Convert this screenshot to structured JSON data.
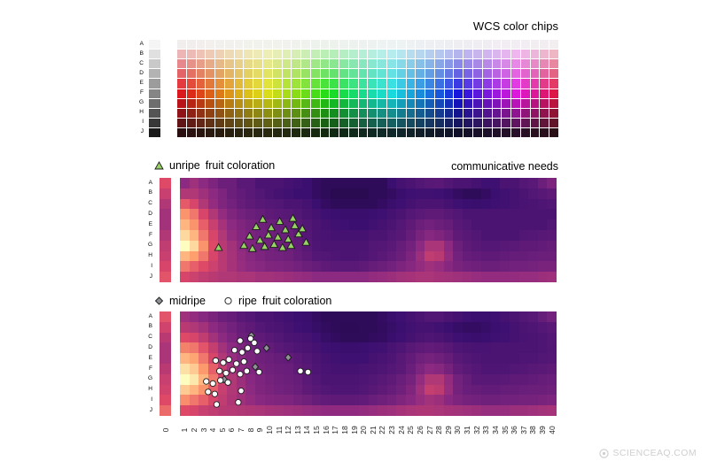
{
  "watermark": "SCIENCEAQ.COM",
  "row_labels": [
    "A",
    "B",
    "C",
    "D",
    "E",
    "F",
    "G",
    "H",
    "I",
    "J"
  ],
  "x_labels": [
    "0",
    "1",
    "2",
    "3",
    "4",
    "5",
    "6",
    "7",
    "8",
    "9",
    "10",
    "11",
    "12",
    "13",
    "14",
    "15",
    "16",
    "17",
    "18",
    "19",
    "20",
    "21",
    "22",
    "23",
    "24",
    "25",
    "26",
    "27",
    "28",
    "29",
    "30",
    "31",
    "32",
    "33",
    "34",
    "35",
    "36",
    "37",
    "38",
    "39",
    "40"
  ],
  "colormap_stops": [
    [
      0,
      "#000004"
    ],
    [
      0.25,
      "#3b0f70"
    ],
    [
      0.5,
      "#8c2981"
    ],
    [
      0.72,
      "#de4968"
    ],
    [
      0.87,
      "#fe9f6d"
    ],
    [
      1,
      "#fcfdbf"
    ]
  ],
  "marker_style": {
    "triangle_fill": "#97d264",
    "diamond_fill": "#8f9196",
    "circle_fill": "#ffffff",
    "stroke": "#1a1a1a"
  },
  "chart_data": [
    {
      "type": "heatmap",
      "id": "chips",
      "title": "WCS color chips",
      "rows": [
        "A",
        "B",
        "C",
        "D",
        "E",
        "F",
        "G",
        "H",
        "I",
        "J"
      ],
      "cols": 40,
      "col_hues": [
        358,
        6,
        14,
        22,
        30,
        38,
        45,
        51,
        56,
        61,
        68,
        76,
        85,
        95,
        105,
        115,
        125,
        135,
        145,
        155,
        165,
        173,
        181,
        189,
        197,
        205,
        213,
        221,
        230,
        240,
        250,
        260,
        270,
        280,
        290,
        300,
        310,
        320,
        332,
        345
      ],
      "row_saturation": [
        18,
        62,
        66,
        70,
        75,
        80,
        80,
        75,
        65,
        45
      ],
      "row_lightness": [
        94,
        82,
        72,
        64,
        56,
        48,
        40,
        32,
        23,
        11
      ],
      "grayscale_column_lightness": [
        96,
        88,
        79,
        70,
        61,
        52,
        43,
        33,
        22,
        10
      ]
    },
    {
      "type": "heatmap",
      "id": "needs",
      "title": "communicative needs",
      "legend": {
        "items": [
          {
            "marker": "triangle",
            "label": "unripe"
          }
        ],
        "suffix": "fruit coloration"
      },
      "rows": [
        "A",
        "B",
        "C",
        "D",
        "E",
        "F",
        "G",
        "H",
        "I",
        "J"
      ],
      "col0": [
        0.72,
        0.66,
        0.6,
        0.56,
        0.56,
        0.6,
        0.64,
        0.66,
        0.7,
        0.74
      ],
      "values": [
        [
          0.5,
          0.55,
          0.5,
          0.45,
          0.4,
          0.4,
          0.35,
          0.35,
          0.3,
          0.3,
          0.3,
          0.28,
          0.27,
          0.25,
          0.22,
          0.2,
          0.2,
          0.2,
          0.2,
          0.2,
          0.2,
          0.2,
          0.25,
          0.28,
          0.3,
          0.32,
          0.34,
          0.35,
          0.32,
          0.3,
          0.3,
          0.28,
          0.26,
          0.26,
          0.3,
          0.3,
          0.33,
          0.35,
          0.4,
          0.45
        ],
        [
          0.6,
          0.6,
          0.55,
          0.5,
          0.45,
          0.4,
          0.37,
          0.35,
          0.32,
          0.3,
          0.28,
          0.27,
          0.25,
          0.25,
          0.22,
          0.2,
          0.18,
          0.18,
          0.18,
          0.18,
          0.2,
          0.2,
          0.22,
          0.24,
          0.26,
          0.27,
          0.27,
          0.26,
          0.24,
          0.22,
          0.2,
          0.2,
          0.22,
          0.25,
          0.27,
          0.28,
          0.3,
          0.32,
          0.34,
          0.36
        ],
        [
          0.75,
          0.7,
          0.6,
          0.52,
          0.46,
          0.42,
          0.38,
          0.36,
          0.34,
          0.33,
          0.32,
          0.3,
          0.3,
          0.28,
          0.25,
          0.22,
          0.2,
          0.2,
          0.2,
          0.2,
          0.2,
          0.22,
          0.24,
          0.26,
          0.28,
          0.3,
          0.3,
          0.3,
          0.28,
          0.26,
          0.25,
          0.24,
          0.25,
          0.26,
          0.27,
          0.28,
          0.29,
          0.3,
          0.31,
          0.32
        ],
        [
          0.85,
          0.8,
          0.7,
          0.6,
          0.52,
          0.46,
          0.42,
          0.4,
          0.38,
          0.36,
          0.35,
          0.34,
          0.32,
          0.3,
          0.28,
          0.26,
          0.25,
          0.24,
          0.24,
          0.24,
          0.25,
          0.26,
          0.28,
          0.3,
          0.33,
          0.35,
          0.36,
          0.36,
          0.34,
          0.32,
          0.3,
          0.3,
          0.3,
          0.3,
          0.3,
          0.3,
          0.3,
          0.3,
          0.3,
          0.3
        ],
        [
          0.9,
          0.85,
          0.76,
          0.66,
          0.57,
          0.5,
          0.46,
          0.43,
          0.41,
          0.4,
          0.39,
          0.38,
          0.35,
          0.32,
          0.3,
          0.28,
          0.27,
          0.26,
          0.25,
          0.25,
          0.27,
          0.28,
          0.3,
          0.33,
          0.36,
          0.4,
          0.42,
          0.4,
          0.38,
          0.34,
          0.32,
          0.3,
          0.3,
          0.3,
          0.3,
          0.3,
          0.3,
          0.3,
          0.3,
          0.32
        ],
        [
          0.95,
          0.9,
          0.8,
          0.7,
          0.6,
          0.52,
          0.47,
          0.44,
          0.42,
          0.41,
          0.4,
          0.39,
          0.36,
          0.33,
          0.3,
          0.29,
          0.28,
          0.28,
          0.28,
          0.28,
          0.3,
          0.3,
          0.32,
          0.34,
          0.38,
          0.44,
          0.48,
          0.46,
          0.42,
          0.36,
          0.34,
          0.32,
          0.3,
          0.3,
          0.3,
          0.3,
          0.32,
          0.33,
          0.34,
          0.35
        ],
        [
          1,
          0.95,
          0.85,
          0.72,
          0.62,
          0.56,
          0.5,
          0.46,
          0.43,
          0.42,
          0.4,
          0.4,
          0.37,
          0.34,
          0.31,
          0.3,
          0.3,
          0.3,
          0.3,
          0.3,
          0.32,
          0.33,
          0.35,
          0.38,
          0.42,
          0.5,
          0.58,
          0.58,
          0.5,
          0.4,
          0.36,
          0.34,
          0.33,
          0.33,
          0.34,
          0.35,
          0.36,
          0.36,
          0.37,
          0.38
        ],
        [
          0.9,
          0.87,
          0.8,
          0.7,
          0.62,
          0.57,
          0.52,
          0.48,
          0.45,
          0.43,
          0.42,
          0.41,
          0.38,
          0.36,
          0.33,
          0.32,
          0.31,
          0.3,
          0.3,
          0.31,
          0.33,
          0.35,
          0.37,
          0.4,
          0.45,
          0.54,
          0.64,
          0.62,
          0.52,
          0.42,
          0.38,
          0.37,
          0.36,
          0.36,
          0.37,
          0.38,
          0.38,
          0.39,
          0.4,
          0.4
        ],
        [
          0.8,
          0.76,
          0.72,
          0.67,
          0.62,
          0.57,
          0.53,
          0.5,
          0.48,
          0.46,
          0.45,
          0.44,
          0.42,
          0.4,
          0.38,
          0.36,
          0.35,
          0.35,
          0.35,
          0.36,
          0.38,
          0.4,
          0.42,
          0.45,
          0.48,
          0.52,
          0.55,
          0.53,
          0.48,
          0.44,
          0.42,
          0.41,
          0.4,
          0.4,
          0.41,
          0.42,
          0.42,
          0.43,
          0.44,
          0.44
        ],
        [
          0.7,
          0.67,
          0.64,
          0.62,
          0.6,
          0.6,
          0.58,
          0.58,
          0.56,
          0.56,
          0.55,
          0.54,
          0.53,
          0.52,
          0.5,
          0.5,
          0.5,
          0.5,
          0.5,
          0.5,
          0.52,
          0.53,
          0.54,
          0.56,
          0.57,
          0.58,
          0.58,
          0.57,
          0.56,
          0.55,
          0.54,
          0.53,
          0.52,
          0.52,
          0.52,
          0.52,
          0.53,
          0.53,
          0.54,
          0.55
        ]
      ],
      "markers": {
        "triangle": [
          [
            4.6,
            6.2
          ],
          [
            7.3,
            6.0
          ],
          [
            7.9,
            5.1
          ],
          [
            8.2,
            6.3
          ],
          [
            8.6,
            4.2
          ],
          [
            9.0,
            5.5
          ],
          [
            9.3,
            3.5
          ],
          [
            9.5,
            6.1
          ],
          [
            9.9,
            5.0
          ],
          [
            10.2,
            4.3
          ],
          [
            10.5,
            5.9
          ],
          [
            10.9,
            5.2
          ],
          [
            11.1,
            3.7
          ],
          [
            11.4,
            6.2
          ],
          [
            11.7,
            4.5
          ],
          [
            12.0,
            5.4
          ],
          [
            12.3,
            6.0
          ],
          [
            12.7,
            4.1
          ],
          [
            13.1,
            4.9
          ],
          [
            13.5,
            4.4
          ],
          [
            13.9,
            5.7
          ],
          [
            12.5,
            3.4
          ]
        ]
      }
    },
    {
      "type": "heatmap",
      "id": "fruit",
      "title": "",
      "legend": {
        "items": [
          {
            "marker": "diamond",
            "label": "midripe"
          },
          {
            "marker": "circle",
            "label": "ripe"
          }
        ],
        "suffix": "fruit coloration"
      },
      "rows": [
        "A",
        "B",
        "C",
        "D",
        "E",
        "F",
        "G",
        "H",
        "I",
        "J"
      ],
      "col0": [
        0.74,
        0.68,
        0.62,
        0.58,
        0.58,
        0.62,
        0.66,
        0.68,
        0.72,
        0.78
      ],
      "values": [
        [
          0.55,
          0.52,
          0.48,
          0.44,
          0.4,
          0.38,
          0.35,
          0.33,
          0.3,
          0.3,
          0.28,
          0.27,
          0.25,
          0.24,
          0.22,
          0.2,
          0.2,
          0.2,
          0.2,
          0.2,
          0.2,
          0.22,
          0.24,
          0.26,
          0.28,
          0.3,
          0.32,
          0.32,
          0.3,
          0.28,
          0.26,
          0.25,
          0.25,
          0.26,
          0.28,
          0.3,
          0.32,
          0.34,
          0.38,
          0.42
        ],
        [
          0.62,
          0.6,
          0.56,
          0.5,
          0.46,
          0.42,
          0.38,
          0.36,
          0.33,
          0.31,
          0.3,
          0.28,
          0.26,
          0.25,
          0.23,
          0.21,
          0.2,
          0.19,
          0.19,
          0.2,
          0.2,
          0.21,
          0.23,
          0.25,
          0.27,
          0.28,
          0.28,
          0.27,
          0.25,
          0.23,
          0.22,
          0.22,
          0.23,
          0.25,
          0.26,
          0.28,
          0.3,
          0.31,
          0.33,
          0.35
        ],
        [
          0.72,
          0.7,
          0.64,
          0.56,
          0.5,
          0.45,
          0.4,
          0.38,
          0.36,
          0.34,
          0.32,
          0.3,
          0.29,
          0.28,
          0.26,
          0.23,
          0.21,
          0.2,
          0.2,
          0.2,
          0.21,
          0.22,
          0.24,
          0.26,
          0.28,
          0.3,
          0.31,
          0.3,
          0.28,
          0.26,
          0.25,
          0.24,
          0.25,
          0.26,
          0.27,
          0.28,
          0.29,
          0.3,
          0.31,
          0.33
        ],
        [
          0.82,
          0.8,
          0.74,
          0.65,
          0.56,
          0.5,
          0.45,
          0.42,
          0.39,
          0.37,
          0.35,
          0.33,
          0.31,
          0.3,
          0.28,
          0.26,
          0.25,
          0.24,
          0.24,
          0.25,
          0.26,
          0.27,
          0.29,
          0.31,
          0.34,
          0.36,
          0.37,
          0.36,
          0.34,
          0.31,
          0.3,
          0.29,
          0.29,
          0.3,
          0.3,
          0.3,
          0.3,
          0.3,
          0.31,
          0.32
        ],
        [
          0.9,
          0.88,
          0.8,
          0.7,
          0.6,
          0.53,
          0.48,
          0.44,
          0.41,
          0.4,
          0.38,
          0.37,
          0.35,
          0.32,
          0.3,
          0.28,
          0.27,
          0.26,
          0.26,
          0.26,
          0.28,
          0.29,
          0.31,
          0.34,
          0.37,
          0.41,
          0.43,
          0.41,
          0.38,
          0.34,
          0.32,
          0.31,
          0.3,
          0.3,
          0.3,
          0.3,
          0.31,
          0.31,
          0.32,
          0.33
        ],
        [
          0.96,
          0.93,
          0.86,
          0.76,
          0.65,
          0.56,
          0.5,
          0.46,
          0.43,
          0.41,
          0.4,
          0.39,
          0.36,
          0.34,
          0.31,
          0.29,
          0.28,
          0.28,
          0.28,
          0.29,
          0.3,
          0.31,
          0.33,
          0.35,
          0.39,
          0.45,
          0.5,
          0.48,
          0.43,
          0.37,
          0.35,
          0.33,
          0.31,
          0.31,
          0.31,
          0.32,
          0.33,
          0.34,
          0.35,
          0.36
        ],
        [
          1,
          0.97,
          0.9,
          0.8,
          0.68,
          0.6,
          0.54,
          0.49,
          0.45,
          0.43,
          0.41,
          0.4,
          0.38,
          0.35,
          0.32,
          0.3,
          0.3,
          0.3,
          0.3,
          0.31,
          0.32,
          0.34,
          0.36,
          0.39,
          0.43,
          0.52,
          0.6,
          0.6,
          0.52,
          0.42,
          0.38,
          0.35,
          0.34,
          0.34,
          0.35,
          0.36,
          0.36,
          0.37,
          0.38,
          0.39
        ],
        [
          0.93,
          0.9,
          0.85,
          0.76,
          0.66,
          0.6,
          0.55,
          0.5,
          0.46,
          0.44,
          0.42,
          0.41,
          0.39,
          0.36,
          0.34,
          0.32,
          0.31,
          0.31,
          0.31,
          0.32,
          0.34,
          0.36,
          0.38,
          0.41,
          0.46,
          0.55,
          0.65,
          0.63,
          0.53,
          0.43,
          0.39,
          0.38,
          0.37,
          0.37,
          0.38,
          0.38,
          0.39,
          0.4,
          0.4,
          0.41
        ],
        [
          0.84,
          0.8,
          0.76,
          0.7,
          0.64,
          0.59,
          0.55,
          0.52,
          0.49,
          0.47,
          0.46,
          0.45,
          0.43,
          0.41,
          0.38,
          0.37,
          0.36,
          0.36,
          0.36,
          0.37,
          0.39,
          0.41,
          0.43,
          0.46,
          0.49,
          0.53,
          0.56,
          0.54,
          0.49,
          0.45,
          0.43,
          0.42,
          0.41,
          0.41,
          0.42,
          0.42,
          0.43,
          0.43,
          0.44,
          0.45
        ],
        [
          0.72,
          0.7,
          0.66,
          0.64,
          0.62,
          0.61,
          0.6,
          0.59,
          0.58,
          0.57,
          0.56,
          0.55,
          0.54,
          0.53,
          0.52,
          0.51,
          0.51,
          0.51,
          0.51,
          0.52,
          0.53,
          0.54,
          0.55,
          0.57,
          0.58,
          0.59,
          0.59,
          0.58,
          0.57,
          0.56,
          0.55,
          0.54,
          0.53,
          0.53,
          0.53,
          0.54,
          0.54,
          0.55,
          0.56,
          0.57
        ]
      ],
      "markers": {
        "diamond": [
          [
            8.1,
            1.8
          ],
          [
            9.7,
            3.0
          ],
          [
            12.0,
            3.9
          ],
          [
            8.5,
            4.8
          ],
          [
            5.2,
            6.0
          ]
        ],
        "circle": [
          [
            6.9,
            2.3
          ],
          [
            8.0,
            2.1
          ],
          [
            8.4,
            2.5
          ],
          [
            6.3,
            3.2
          ],
          [
            7.1,
            3.4
          ],
          [
            7.7,
            3.0
          ],
          [
            8.7,
            3.3
          ],
          [
            4.3,
            4.2
          ],
          [
            5.1,
            4.4
          ],
          [
            5.7,
            4.1
          ],
          [
            6.5,
            4.5
          ],
          [
            7.3,
            4.3
          ],
          [
            4.7,
            5.2
          ],
          [
            5.4,
            5.4
          ],
          [
            6.1,
            5.1
          ],
          [
            6.9,
            5.5
          ],
          [
            7.6,
            5.2
          ],
          [
            8.9,
            5.3
          ],
          [
            13.3,
            5.2
          ],
          [
            14.1,
            5.3
          ],
          [
            3.3,
            6.2
          ],
          [
            4.0,
            6.4
          ],
          [
            4.8,
            6.1
          ],
          [
            5.6,
            6.3
          ],
          [
            3.5,
            7.2
          ],
          [
            4.2,
            7.4
          ],
          [
            7.0,
            7.1
          ],
          [
            6.7,
            8.2
          ],
          [
            4.4,
            8.4
          ]
        ]
      }
    }
  ]
}
